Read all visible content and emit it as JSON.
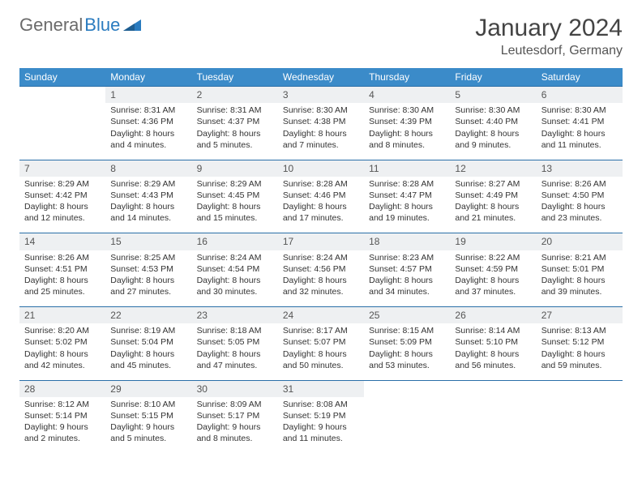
{
  "brand": {
    "part1": "General",
    "part2": "Blue"
  },
  "title": "January 2024",
  "location": "Leutesdorf, Germany",
  "colors": {
    "header_bg": "#3b8bc9",
    "row_divider": "#2a6fa8",
    "daynum_bg": "#eef0f2",
    "text": "#333333",
    "logo_gray": "#6b6b6b",
    "logo_blue": "#2a7bbf"
  },
  "weekdays": [
    "Sunday",
    "Monday",
    "Tuesday",
    "Wednesday",
    "Thursday",
    "Friday",
    "Saturday"
  ],
  "weeks": [
    {
      "nums": [
        "",
        "1",
        "2",
        "3",
        "4",
        "5",
        "6"
      ],
      "cells": [
        {
          "empty": true
        },
        {
          "sunrise": "Sunrise: 8:31 AM",
          "sunset": "Sunset: 4:36 PM",
          "day1": "Daylight: 8 hours",
          "day2": "and 4 minutes."
        },
        {
          "sunrise": "Sunrise: 8:31 AM",
          "sunset": "Sunset: 4:37 PM",
          "day1": "Daylight: 8 hours",
          "day2": "and 5 minutes."
        },
        {
          "sunrise": "Sunrise: 8:30 AM",
          "sunset": "Sunset: 4:38 PM",
          "day1": "Daylight: 8 hours",
          "day2": "and 7 minutes."
        },
        {
          "sunrise": "Sunrise: 8:30 AM",
          "sunset": "Sunset: 4:39 PM",
          "day1": "Daylight: 8 hours",
          "day2": "and 8 minutes."
        },
        {
          "sunrise": "Sunrise: 8:30 AM",
          "sunset": "Sunset: 4:40 PM",
          "day1": "Daylight: 8 hours",
          "day2": "and 9 minutes."
        },
        {
          "sunrise": "Sunrise: 8:30 AM",
          "sunset": "Sunset: 4:41 PM",
          "day1": "Daylight: 8 hours",
          "day2": "and 11 minutes."
        }
      ]
    },
    {
      "nums": [
        "7",
        "8",
        "9",
        "10",
        "11",
        "12",
        "13"
      ],
      "cells": [
        {
          "sunrise": "Sunrise: 8:29 AM",
          "sunset": "Sunset: 4:42 PM",
          "day1": "Daylight: 8 hours",
          "day2": "and 12 minutes."
        },
        {
          "sunrise": "Sunrise: 8:29 AM",
          "sunset": "Sunset: 4:43 PM",
          "day1": "Daylight: 8 hours",
          "day2": "and 14 minutes."
        },
        {
          "sunrise": "Sunrise: 8:29 AM",
          "sunset": "Sunset: 4:45 PM",
          "day1": "Daylight: 8 hours",
          "day2": "and 15 minutes."
        },
        {
          "sunrise": "Sunrise: 8:28 AM",
          "sunset": "Sunset: 4:46 PM",
          "day1": "Daylight: 8 hours",
          "day2": "and 17 minutes."
        },
        {
          "sunrise": "Sunrise: 8:28 AM",
          "sunset": "Sunset: 4:47 PM",
          "day1": "Daylight: 8 hours",
          "day2": "and 19 minutes."
        },
        {
          "sunrise": "Sunrise: 8:27 AM",
          "sunset": "Sunset: 4:49 PM",
          "day1": "Daylight: 8 hours",
          "day2": "and 21 minutes."
        },
        {
          "sunrise": "Sunrise: 8:26 AM",
          "sunset": "Sunset: 4:50 PM",
          "day1": "Daylight: 8 hours",
          "day2": "and 23 minutes."
        }
      ]
    },
    {
      "nums": [
        "14",
        "15",
        "16",
        "17",
        "18",
        "19",
        "20"
      ],
      "cells": [
        {
          "sunrise": "Sunrise: 8:26 AM",
          "sunset": "Sunset: 4:51 PM",
          "day1": "Daylight: 8 hours",
          "day2": "and 25 minutes."
        },
        {
          "sunrise": "Sunrise: 8:25 AM",
          "sunset": "Sunset: 4:53 PM",
          "day1": "Daylight: 8 hours",
          "day2": "and 27 minutes."
        },
        {
          "sunrise": "Sunrise: 8:24 AM",
          "sunset": "Sunset: 4:54 PM",
          "day1": "Daylight: 8 hours",
          "day2": "and 30 minutes."
        },
        {
          "sunrise": "Sunrise: 8:24 AM",
          "sunset": "Sunset: 4:56 PM",
          "day1": "Daylight: 8 hours",
          "day2": "and 32 minutes."
        },
        {
          "sunrise": "Sunrise: 8:23 AM",
          "sunset": "Sunset: 4:57 PM",
          "day1": "Daylight: 8 hours",
          "day2": "and 34 minutes."
        },
        {
          "sunrise": "Sunrise: 8:22 AM",
          "sunset": "Sunset: 4:59 PM",
          "day1": "Daylight: 8 hours",
          "day2": "and 37 minutes."
        },
        {
          "sunrise": "Sunrise: 8:21 AM",
          "sunset": "Sunset: 5:01 PM",
          "day1": "Daylight: 8 hours",
          "day2": "and 39 minutes."
        }
      ]
    },
    {
      "nums": [
        "21",
        "22",
        "23",
        "24",
        "25",
        "26",
        "27"
      ],
      "cells": [
        {
          "sunrise": "Sunrise: 8:20 AM",
          "sunset": "Sunset: 5:02 PM",
          "day1": "Daylight: 8 hours",
          "day2": "and 42 minutes."
        },
        {
          "sunrise": "Sunrise: 8:19 AM",
          "sunset": "Sunset: 5:04 PM",
          "day1": "Daylight: 8 hours",
          "day2": "and 45 minutes."
        },
        {
          "sunrise": "Sunrise: 8:18 AM",
          "sunset": "Sunset: 5:05 PM",
          "day1": "Daylight: 8 hours",
          "day2": "and 47 minutes."
        },
        {
          "sunrise": "Sunrise: 8:17 AM",
          "sunset": "Sunset: 5:07 PM",
          "day1": "Daylight: 8 hours",
          "day2": "and 50 minutes."
        },
        {
          "sunrise": "Sunrise: 8:15 AM",
          "sunset": "Sunset: 5:09 PM",
          "day1": "Daylight: 8 hours",
          "day2": "and 53 minutes."
        },
        {
          "sunrise": "Sunrise: 8:14 AM",
          "sunset": "Sunset: 5:10 PM",
          "day1": "Daylight: 8 hours",
          "day2": "and 56 minutes."
        },
        {
          "sunrise": "Sunrise: 8:13 AM",
          "sunset": "Sunset: 5:12 PM",
          "day1": "Daylight: 8 hours",
          "day2": "and 59 minutes."
        }
      ]
    },
    {
      "nums": [
        "28",
        "29",
        "30",
        "31",
        "",
        "",
        ""
      ],
      "cells": [
        {
          "sunrise": "Sunrise: 8:12 AM",
          "sunset": "Sunset: 5:14 PM",
          "day1": "Daylight: 9 hours",
          "day2": "and 2 minutes."
        },
        {
          "sunrise": "Sunrise: 8:10 AM",
          "sunset": "Sunset: 5:15 PM",
          "day1": "Daylight: 9 hours",
          "day2": "and 5 minutes."
        },
        {
          "sunrise": "Sunrise: 8:09 AM",
          "sunset": "Sunset: 5:17 PM",
          "day1": "Daylight: 9 hours",
          "day2": "and 8 minutes."
        },
        {
          "sunrise": "Sunrise: 8:08 AM",
          "sunset": "Sunset: 5:19 PM",
          "day1": "Daylight: 9 hours",
          "day2": "and 11 minutes."
        },
        {
          "empty": true
        },
        {
          "empty": true
        },
        {
          "empty": true
        }
      ]
    }
  ]
}
